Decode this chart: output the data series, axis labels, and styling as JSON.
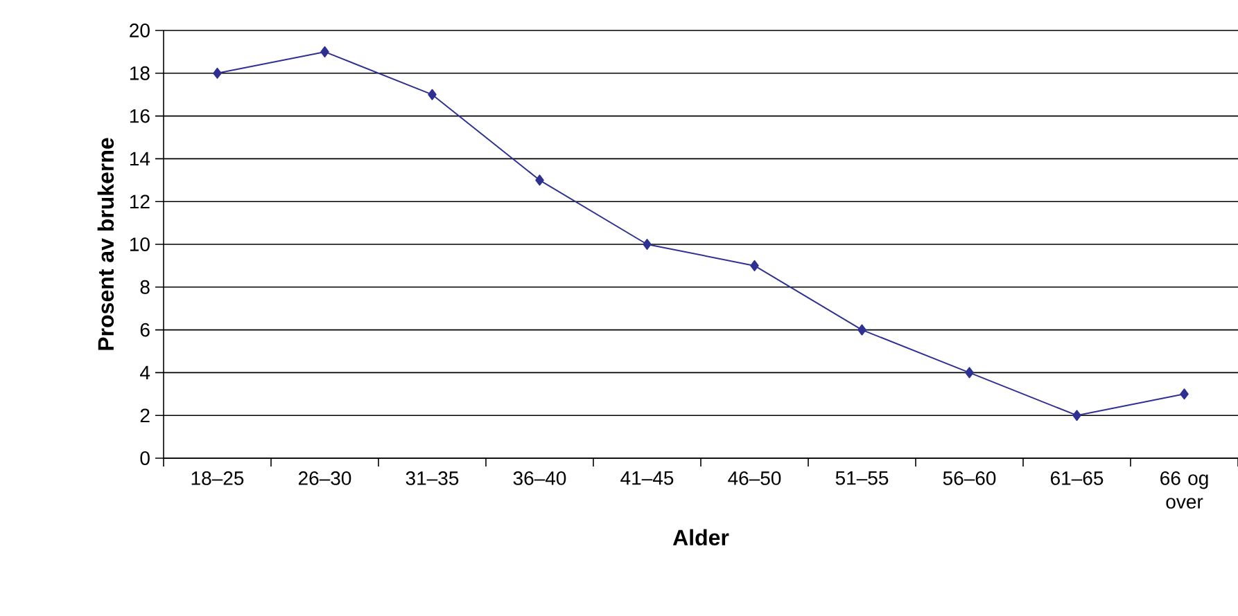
{
  "chart_data": {
    "type": "line",
    "xlabel": "Alder",
    "ylabel": "Prosent av brukerne",
    "categories": [
      "18–25",
      "26–30",
      "31–35",
      "36–40",
      "41–45",
      "46–50",
      "51–55",
      "56–60",
      "61–65",
      "66 og over"
    ],
    "series": [
      {
        "color": "#2e3192",
        "values": [
          18,
          19,
          17,
          13,
          10,
          9,
          6,
          4,
          2,
          3
        ]
      }
    ],
    "ylim": [
      0,
      20
    ],
    "yticks": [
      0,
      2,
      4,
      6,
      8,
      10,
      12,
      14,
      16,
      18,
      20
    ],
    "grid": "y",
    "marker": "diamond",
    "line_style": "solid"
  }
}
